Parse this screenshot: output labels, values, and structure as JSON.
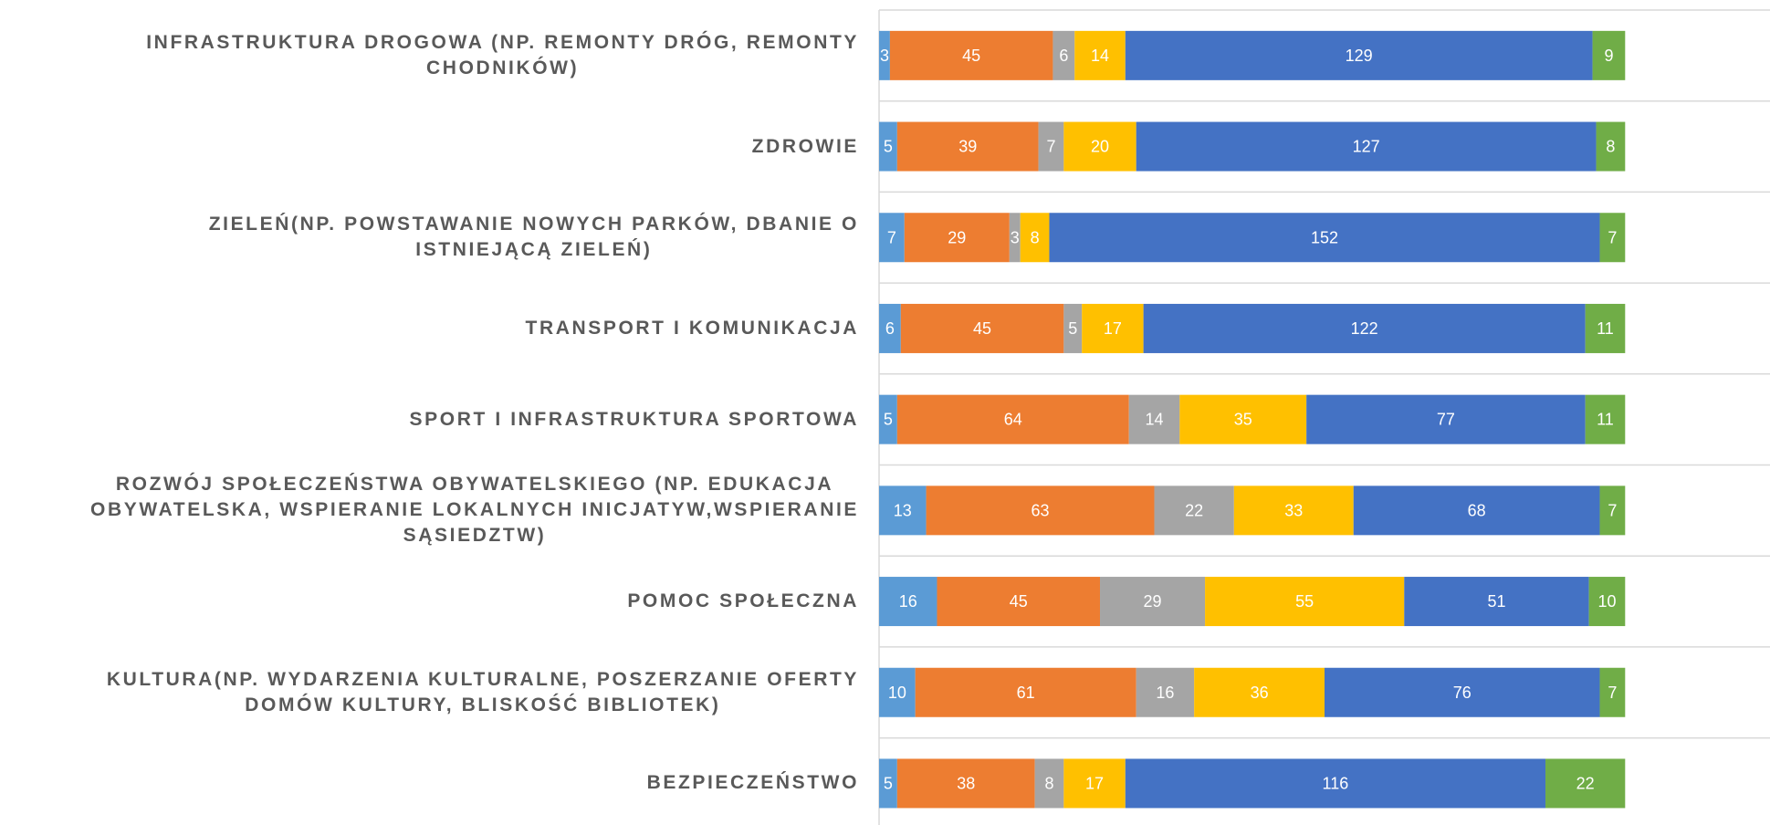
{
  "chart_data": {
    "type": "stacked-bar-horizontal",
    "categories": [
      "INFRASTRUKTURA DROGOWA (NP. REMONTY DRÓG, REMONTY\nCHODNIKÓW)",
      "ZDROWIE",
      "ZIELEŃ(NP. POWSTAWANIE NOWYCH PARKÓW, DBANIE O\nISTNIEJĄCĄ ZIELEŃ)",
      "TRANSPORT I KOMUNIKACJA",
      "SPORT I INFRASTRUKTURA SPORTOWA",
      "ROZWÓJ SPOŁECZEŃSTWA OBYWATELSKIEGO (NP. EDUKACJA\nOBYWATELSKA, WSPIERANIE LOKALNYCH INICJATYW,WSPIERANIE\nSĄSIEDZTW)",
      "POMOC SPOŁECZNA",
      "KULTURA(NP. WYDARZENIA KULTURALNE, POSZERZANIE OFERTY\nDOMÓW KULTURY, BLISKOŚĆ BIBLIOTEK)",
      "BEZPIECZEŃSTWO"
    ],
    "series": [
      {
        "color": "#5b9bd5",
        "values": [
          3,
          5,
          7,
          6,
          5,
          13,
          16,
          10,
          5
        ]
      },
      {
        "color": "#ed7d31",
        "values": [
          45,
          39,
          29,
          45,
          64,
          63,
          45,
          61,
          38
        ]
      },
      {
        "color": "#a5a5a5",
        "values": [
          6,
          7,
          3,
          5,
          14,
          22,
          29,
          16,
          8
        ]
      },
      {
        "color": "#ffc000",
        "values": [
          14,
          20,
          8,
          17,
          35,
          33,
          55,
          36,
          17
        ]
      },
      {
        "color": "#4472c4",
        "values": [
          129,
          127,
          152,
          122,
          77,
          68,
          51,
          76,
          116
        ]
      },
      {
        "color": "#70ad47",
        "values": [
          9,
          8,
          7,
          11,
          11,
          7,
          10,
          7,
          22
        ]
      }
    ],
    "xlim": [
      0,
      246
    ]
  }
}
